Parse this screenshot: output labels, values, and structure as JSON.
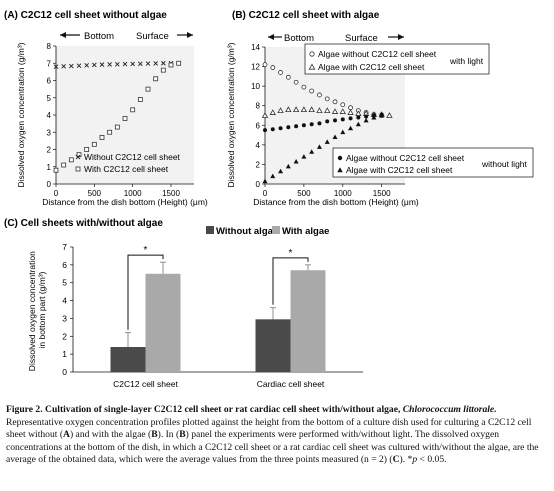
{
  "panels": {
    "a_title": "(A) C2C12 cell sheet without algae",
    "b_title": "(B) C2C12 cell sheet with algae",
    "c_title": "(C) Cell sheets with/without algae",
    "arrow_bottom": "Bottom",
    "arrow_surface": "Surface",
    "legend_light": "with light",
    "legend_dark": "without light",
    "sig": "*"
  },
  "chart_data": [
    {
      "type": "scatter",
      "title": "(A) C2C12 cell sheet without algae",
      "xlabel": "Distance from the dish bottom (Height) (μm)",
      "ylabel": "Dissolved oxygen concentration (g/m³)",
      "xlim": [
        0,
        1800
      ],
      "ylim": [
        0,
        8
      ],
      "xticks": [
        0,
        500,
        1000,
        1500
      ],
      "yticks": [
        0,
        1,
        2,
        3,
        4,
        5,
        6,
        7,
        8
      ],
      "series": [
        {
          "name": "Without C2C12 cell sheet",
          "marker": "x",
          "x": [
            0,
            100,
            200,
            300,
            400,
            500,
            600,
            700,
            800,
            900,
            1000,
            1100,
            1200,
            1300,
            1400,
            1500,
            1600
          ],
          "y": [
            6.8,
            6.82,
            6.84,
            6.86,
            6.88,
            6.9,
            6.92,
            6.93,
            6.94,
            6.95,
            6.96,
            6.97,
            6.98,
            6.99,
            7.0,
            7.0,
            7.0
          ]
        },
        {
          "name": "With C2C12 cell sheet",
          "marker": "square",
          "x": [
            0,
            100,
            200,
            300,
            400,
            500,
            600,
            700,
            800,
            900,
            1000,
            1100,
            1200,
            1300,
            1400,
            1500,
            1600
          ],
          "y": [
            0.8,
            1.1,
            1.4,
            1.7,
            2.0,
            2.3,
            2.7,
            3.0,
            3.3,
            3.8,
            4.3,
            4.9,
            5.5,
            6.1,
            6.6,
            6.9,
            7.0
          ]
        }
      ]
    },
    {
      "type": "scatter",
      "title": "(B) C2C12 cell sheet with algae",
      "xlabel": "Distance from the dish bottom (Height) (μm)",
      "ylabel": "Dissolved oxygen concentration (g/m³)",
      "xlim": [
        0,
        1800
      ],
      "ylim": [
        0,
        14
      ],
      "xticks": [
        0,
        500,
        1000,
        1500
      ],
      "yticks": [
        0,
        2,
        4,
        6,
        8,
        10,
        12,
        14
      ],
      "series": [
        {
          "name": "Algae without C2C12 cell sheet",
          "marker": "open-circle",
          "light": true,
          "x": [
            0,
            100,
            200,
            300,
            400,
            500,
            600,
            700,
            800,
            900,
            1000,
            1100,
            1200,
            1300,
            1400,
            1500
          ],
          "y": [
            12.2,
            11.9,
            11.4,
            10.9,
            10.4,
            9.9,
            9.5,
            9.1,
            8.7,
            8.4,
            8.1,
            7.8,
            7.5,
            7.3,
            7.1,
            7.0
          ]
        },
        {
          "name": "Algae with C2C12 cell sheet",
          "marker": "open-triangle",
          "light": true,
          "x": [
            0,
            100,
            200,
            300,
            400,
            500,
            600,
            700,
            800,
            900,
            1000,
            1100,
            1200,
            1300,
            1400,
            1500,
            1600
          ],
          "y": [
            7.0,
            7.3,
            7.5,
            7.6,
            7.6,
            7.6,
            7.6,
            7.5,
            7.5,
            7.4,
            7.4,
            7.3,
            7.2,
            7.2,
            7.1,
            7.1,
            7.0
          ]
        },
        {
          "name": "Algae without C2C12 cell sheet",
          "marker": "filled-circle",
          "light": false,
          "x": [
            0,
            100,
            200,
            300,
            400,
            500,
            600,
            700,
            800,
            900,
            1000,
            1100,
            1200,
            1300,
            1400,
            1500
          ],
          "y": [
            5.5,
            5.6,
            5.7,
            5.8,
            5.9,
            6.0,
            6.1,
            6.2,
            6.4,
            6.5,
            6.6,
            6.7,
            6.8,
            6.9,
            7.0,
            7.1
          ]
        },
        {
          "name": "Algae with C2C12 cell sheet",
          "marker": "filled-triangle",
          "light": false,
          "x": [
            0,
            100,
            200,
            300,
            400,
            500,
            600,
            700,
            800,
            900,
            1000,
            1100,
            1200,
            1300,
            1400,
            1500
          ],
          "y": [
            0.3,
            0.8,
            1.3,
            1.8,
            2.3,
            2.8,
            3.3,
            3.8,
            4.3,
            4.8,
            5.3,
            5.7,
            6.1,
            6.5,
            6.8,
            7.0
          ]
        }
      ]
    },
    {
      "type": "bar",
      "title": "(C) Cell sheets with/without algae",
      "ylabel": "Dissolved oxygen concentration in bottom part (g/m³)",
      "categories": [
        "C2C12 cell sheet",
        "Cardiac cell sheet"
      ],
      "ylim": [
        0,
        7
      ],
      "yticks": [
        0,
        1,
        2,
        3,
        4,
        5,
        6,
        7
      ],
      "series": [
        {
          "name": "Without algae",
          "color": "#4a4a4a",
          "values": [
            1.4,
            2.95
          ],
          "errors": [
            0.8,
            0.65
          ]
        },
        {
          "name": "With algae",
          "color": "#a9a9a9",
          "values": [
            5.5,
            5.7
          ],
          "errors": [
            0.65,
            0.3
          ]
        }
      ]
    }
  ],
  "caption": {
    "label": "Figure 2.",
    "title": "Cultivation of single-layer C2C12 cell sheet or rat cardiac cell sheet with/without algae,",
    "species": "Chlorococcum littorale.",
    "t1": "Representative oxygen concentration profiles plotted against the height from the bottom of a culture dish used for culturing a C2C12 cell sheet without (",
    "A": "A",
    "t2": ") and with the algae (",
    "B": "B",
    "t3": "). In (",
    "B2": "B",
    "t4": ") panel the experiments were performed with/without light. The dissolved oxygen concentrations at the bottom of the dish, in which a C2C12 cell sheet or a rat cardiac cell sheet was cultured with/without the algae, are the average of the obtained data, which were the average values from the three points measured (n = 2) (",
    "C": "C",
    "t5": "). *",
    "p": "p",
    "t6": " < 0.05."
  }
}
